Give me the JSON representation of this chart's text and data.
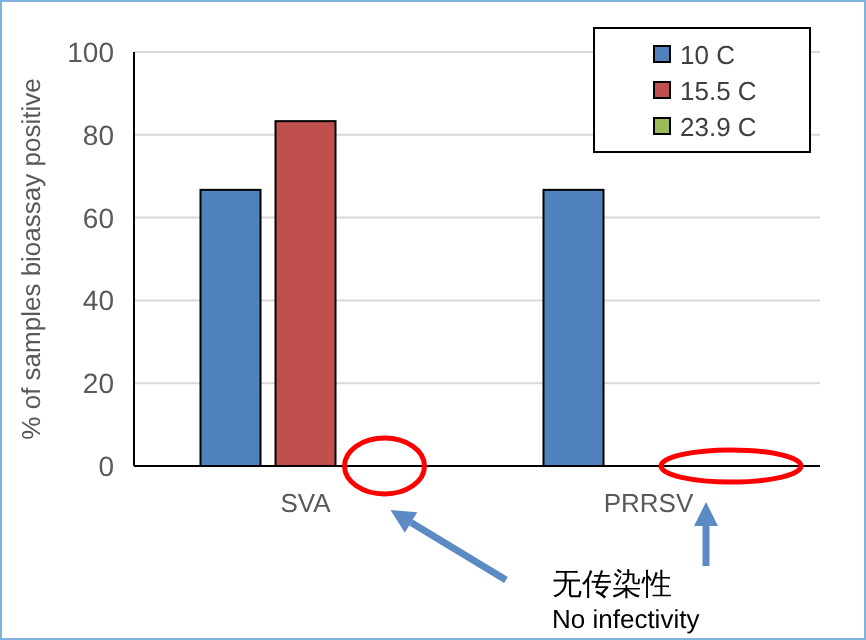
{
  "chart_data": {
    "type": "bar",
    "ylabel": "% of samples bioassay positive",
    "categories": [
      "SVA",
      "PRRSV"
    ],
    "series": [
      {
        "name": "10 C",
        "color": "#4f81bd",
        "values": [
          66.7,
          66.7
        ]
      },
      {
        "name": "15.5 C",
        "color": "#c0504d",
        "values": [
          83.3,
          0
        ]
      },
      {
        "name": "23.9 C",
        "color": "#9bbb59",
        "values": [
          0,
          0
        ]
      }
    ],
    "ylim": [
      0,
      100
    ],
    "yticks": [
      0,
      20,
      40,
      60,
      80,
      100
    ],
    "grid": "y",
    "legend": "top right",
    "annotations": [
      "无传染性",
      "No infectivity"
    ]
  }
}
